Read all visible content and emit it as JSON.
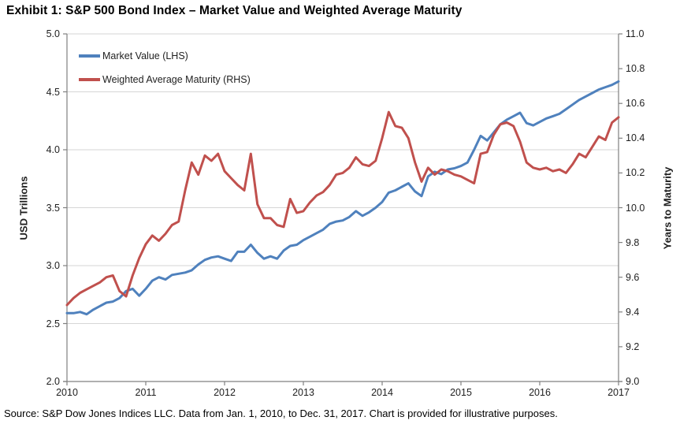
{
  "title": "Exhibit 1: S&P 500 Bond Index – Market Value and Weighted Average Maturity",
  "source_note": "Source: S&P Dow Jones Indices LLC. Data from Jan. 1, 2010, to Dec. 31, 2017. Chart is provided for illustrative purposes.",
  "colors": {
    "market_value_line": "#4F81BD",
    "maturity_line": "#C0504D",
    "gridline": "#D6D6D6",
    "axis_line": "#808080",
    "text": "#1f1f1f"
  },
  "chart_data": {
    "type": "line",
    "title": "Exhibit 1: S&P 500 Bond Index – Market Value and Weighted Average Maturity",
    "x_tick_labels": [
      "2010",
      "2011",
      "2012",
      "2013",
      "2014",
      "2015",
      "2016",
      "2017"
    ],
    "x_start_year": 2010,
    "x_end_year": 2017,
    "points_per_year": 12,
    "grid": "horizontal-only",
    "legend_position": "top-left-inside",
    "left_axis": {
      "label": "USD Trillions",
      "min": 2.0,
      "max": 5.0,
      "step": 0.5,
      "tick_labels": [
        "5.0",
        "4.5",
        "4.0",
        "3.5",
        "3.0",
        "2.5",
        "2.0"
      ]
    },
    "right_axis": {
      "label": "Years to Maturity",
      "min": 9.0,
      "max": 11.0,
      "step": 0.2,
      "tick_labels": [
        "11.0",
        "10.8",
        "10.6",
        "10.4",
        "10.2",
        "10.0",
        "9.8",
        "9.6",
        "9.4",
        "9.2",
        "9.0"
      ]
    },
    "series": [
      {
        "name": "Market Value (LHS)",
        "axis": "left",
        "color": "#4F81BD",
        "values": [
          2.59,
          2.59,
          2.6,
          2.58,
          2.62,
          2.65,
          2.68,
          2.69,
          2.72,
          2.78,
          2.8,
          2.74,
          2.8,
          2.87,
          2.9,
          2.88,
          2.92,
          2.93,
          2.94,
          2.96,
          3.01,
          3.05,
          3.07,
          3.08,
          3.06,
          3.04,
          3.12,
          3.12,
          3.18,
          3.11,
          3.06,
          3.08,
          3.06,
          3.13,
          3.17,
          3.18,
          3.22,
          3.25,
          3.28,
          3.31,
          3.36,
          3.38,
          3.39,
          3.42,
          3.47,
          3.43,
          3.46,
          3.5,
          3.55,
          3.63,
          3.65,
          3.68,
          3.71,
          3.64,
          3.6,
          3.77,
          3.81,
          3.79,
          3.83,
          3.84,
          3.86,
          3.89,
          4.0,
          4.12,
          4.08,
          4.15,
          4.22,
          4.26,
          4.29,
          4.32,
          4.23,
          4.21,
          4.24,
          4.27,
          4.29,
          4.31,
          4.35,
          4.39,
          4.43,
          4.46,
          4.49,
          4.52,
          4.54,
          4.56,
          4.59
        ]
      },
      {
        "name": "Weighted Average Maturity (RHS)",
        "axis": "right",
        "color": "#C0504D",
        "values": [
          9.44,
          9.48,
          9.51,
          9.53,
          9.55,
          9.57,
          9.6,
          9.61,
          9.52,
          9.49,
          9.61,
          9.71,
          9.79,
          9.84,
          9.81,
          9.85,
          9.9,
          9.92,
          10.1,
          10.26,
          10.19,
          10.3,
          10.27,
          10.31,
          10.21,
          10.17,
          10.13,
          10.1,
          10.31,
          10.02,
          9.94,
          9.94,
          9.9,
          9.89,
          10.05,
          9.97,
          9.98,
          10.03,
          10.07,
          10.09,
          10.13,
          10.19,
          10.2,
          10.23,
          10.29,
          10.25,
          10.24,
          10.27,
          10.4,
          10.55,
          10.47,
          10.46,
          10.4,
          10.26,
          10.15,
          10.23,
          10.19,
          10.22,
          10.21,
          10.19,
          10.18,
          10.16,
          10.14,
          10.31,
          10.32,
          10.42,
          10.48,
          10.49,
          10.47,
          10.38,
          10.26,
          10.23,
          10.22,
          10.23,
          10.21,
          10.22,
          10.2,
          10.25,
          10.31,
          10.29,
          10.35,
          10.41,
          10.39,
          10.49,
          10.52
        ]
      }
    ]
  }
}
